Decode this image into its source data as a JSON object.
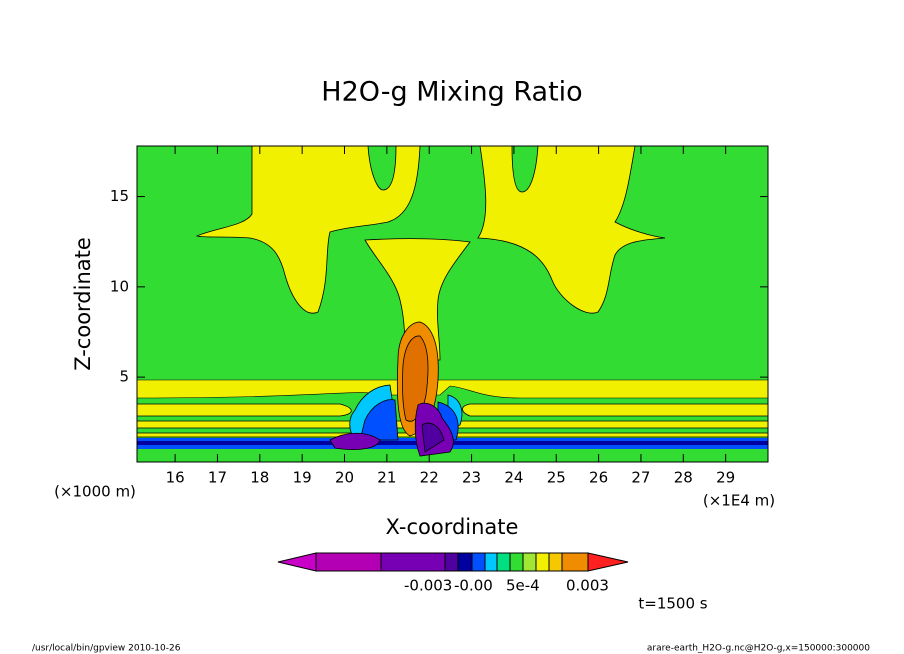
{
  "chart_data": {
    "type": "contour",
    "title": "H2O-g Mixing Ratio",
    "x_label": "X-coordinate",
    "y_label": "Z-coordinate",
    "x_unit": "(×1E4 m)",
    "y_unit": "(×1000 m)",
    "xlim": [
      15.1,
      30
    ],
    "ylim": [
      0.3,
      17.8
    ],
    "xticks": [
      16,
      17,
      18,
      19,
      20,
      21,
      22,
      23,
      24,
      25,
      26,
      27,
      28,
      29
    ],
    "yticks": [
      5,
      10,
      15
    ],
    "colorbar": {
      "colors": [
        "#c800c8",
        "#b400b4",
        "#7800b4",
        "#5000a0",
        "#0000a0",
        "#0050ff",
        "#00c8ff",
        "#00e080",
        "#32dc32",
        "#a0e632",
        "#f0f000",
        "#f5c800",
        "#f08c00",
        "#ff2020"
      ],
      "labels": [
        "-0.003",
        "-0.00",
        "5e-4",
        "0.003"
      ]
    },
    "time_label": "t=1500 s"
  },
  "footer": {
    "left": "/usr/local/bin/gpview  2010-10-26",
    "right": "arare-earth_H2O-g.nc@H2O-g,x=150000:300000"
  }
}
